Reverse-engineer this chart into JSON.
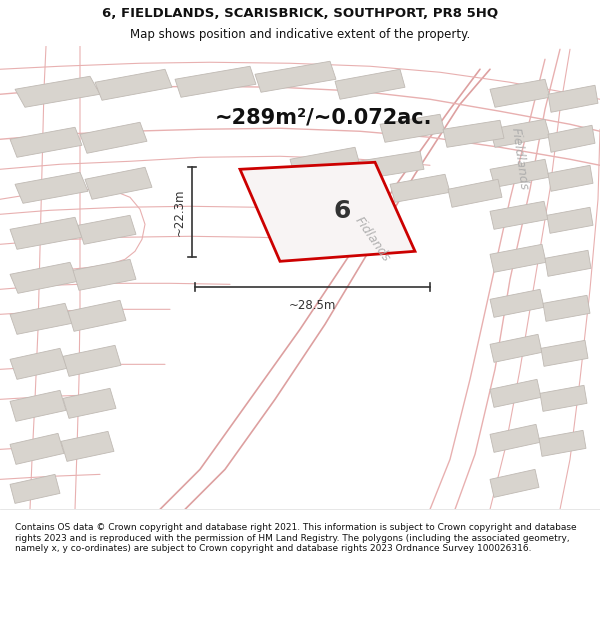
{
  "title_line1": "6, FIELDLANDS, SCARISBRICK, SOUTHPORT, PR8 5HQ",
  "title_line2": "Map shows position and indicative extent of the property.",
  "area_text": "~289m²/~0.072ac.",
  "label_number": "6",
  "dim_width": "~28.5m",
  "dim_height": "~22.3m",
  "road_label_diag": "Fidlands",
  "road_label_right": "Fieldlands",
  "footer_text": "Contains OS data © Crown copyright and database right 2021. This information is subject to Crown copyright and database rights 2023 and is reproduced with the permission of HM Land Registry. The polygons (including the associated geometry, namely x, y co-ordinates) are subject to Crown copyright and database rights 2023 Ordnance Survey 100026316.",
  "map_bg": "#f2eeea",
  "plot_fill": "#f0ecec",
  "plot_edge": "#cc0000",
  "building_fill": "#d8d4ce",
  "building_edge": "#c0bab4",
  "road_color": "#e8b0b0",
  "road_color2": "#dda0a0",
  "dim_color": "#333333",
  "text_color": "#111111",
  "road_text_color": "#aaaaaa",
  "title_bg": "#ffffff",
  "footer_bg": "#ffffff",
  "title_fontsize": 9.5,
  "subtitle_fontsize": 8.5,
  "area_fontsize": 15,
  "label_fontsize": 18,
  "dim_fontsize": 8.5,
  "road_fontsize": 9,
  "footer_fontsize": 6.5
}
